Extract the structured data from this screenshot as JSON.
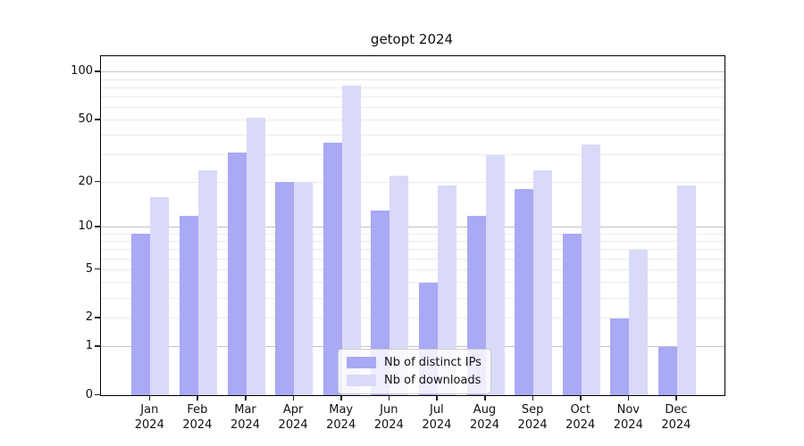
{
  "title": "getopt 2024",
  "chart_data": {
    "type": "bar",
    "title": "getopt 2024",
    "categories": [
      "Jan 2024",
      "Feb 2024",
      "Mar 2024",
      "Apr 2024",
      "May 2024",
      "Jun 2024",
      "Jul 2024",
      "Aug 2024",
      "Sep 2024",
      "Oct 2024",
      "Nov 2024",
      "Dec 2024"
    ],
    "series": [
      {
        "name": "Nb of distinct IPs",
        "color": "#a9a9f5",
        "values": [
          9,
          12,
          31,
          20,
          36,
          13,
          4,
          12,
          18,
          9,
          2,
          1
        ]
      },
      {
        "name": "Nb of downloads",
        "color": "#d9d9f8",
        "values": [
          16,
          24,
          52,
          20,
          82,
          22,
          19,
          30,
          24,
          35,
          7,
          19
        ]
      }
    ],
    "xlabel": "",
    "ylabel": "",
    "yscale": "log1p",
    "ylim": [
      0,
      126
    ],
    "ytick_labels": [
      0,
      1,
      2,
      5,
      10,
      20,
      50,
      100
    ],
    "grid_major_lines": [
      1,
      10,
      100
    ],
    "grid_minor_lines": [
      2,
      3,
      4,
      5,
      6,
      7,
      8,
      9,
      20,
      30,
      40,
      50,
      60,
      70,
      80,
      90
    ],
    "grid": "horizontal",
    "legend_position": "lower-center-inside"
  },
  "legend": {
    "items": [
      {
        "label": "Nb of distinct IPs",
        "color": "#a9a9f5"
      },
      {
        "label": "Nb of downloads",
        "color": "#d9d9f8"
      }
    ]
  },
  "colors": {
    "background": "#ffffff",
    "spine": "#000000",
    "grid_major": "#c3c3c3",
    "grid_minor": "#ebebeb",
    "series_ips": "#a9a9f5",
    "series_downloads": "#d9d9f8"
  }
}
